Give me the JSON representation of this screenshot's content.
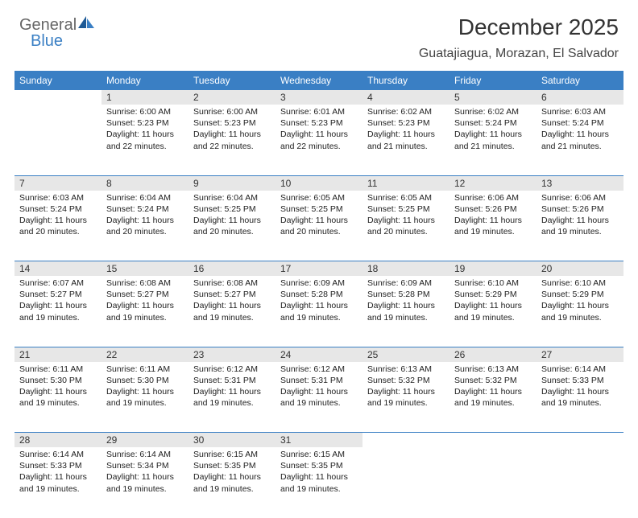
{
  "logo": {
    "part1": "General",
    "part2": "Blue"
  },
  "title": "December 2025",
  "subtitle": "Guatajiagua, Morazan, El Salvador",
  "colors": {
    "header_bg": "#3a7fc4",
    "header_fg": "#ffffff",
    "daynum_bg": "#e7e7e7",
    "daynum_fg": "#333333",
    "body_fg": "#222222",
    "rule": "#3a7fc4",
    "logo_gray": "#666666",
    "logo_blue": "#3a7fc4",
    "background": "#ffffff"
  },
  "typography": {
    "title_pt": 28,
    "subtitle_pt": 16,
    "dayheader_pt": 12,
    "daynum_pt": 12,
    "body_pt": 10.5
  },
  "dayHeaders": [
    "Sunday",
    "Monday",
    "Tuesday",
    "Wednesday",
    "Thursday",
    "Friday",
    "Saturday"
  ],
  "weeks": [
    [
      null,
      {
        "n": "1",
        "sunrise": "Sunrise: 6:00 AM",
        "sunset": "Sunset: 5:23 PM",
        "daylight": "Daylight: 11 hours and 22 minutes."
      },
      {
        "n": "2",
        "sunrise": "Sunrise: 6:00 AM",
        "sunset": "Sunset: 5:23 PM",
        "daylight": "Daylight: 11 hours and 22 minutes."
      },
      {
        "n": "3",
        "sunrise": "Sunrise: 6:01 AM",
        "sunset": "Sunset: 5:23 PM",
        "daylight": "Daylight: 11 hours and 22 minutes."
      },
      {
        "n": "4",
        "sunrise": "Sunrise: 6:02 AM",
        "sunset": "Sunset: 5:23 PM",
        "daylight": "Daylight: 11 hours and 21 minutes."
      },
      {
        "n": "5",
        "sunrise": "Sunrise: 6:02 AM",
        "sunset": "Sunset: 5:24 PM",
        "daylight": "Daylight: 11 hours and 21 minutes."
      },
      {
        "n": "6",
        "sunrise": "Sunrise: 6:03 AM",
        "sunset": "Sunset: 5:24 PM",
        "daylight": "Daylight: 11 hours and 21 minutes."
      }
    ],
    [
      {
        "n": "7",
        "sunrise": "Sunrise: 6:03 AM",
        "sunset": "Sunset: 5:24 PM",
        "daylight": "Daylight: 11 hours and 20 minutes."
      },
      {
        "n": "8",
        "sunrise": "Sunrise: 6:04 AM",
        "sunset": "Sunset: 5:24 PM",
        "daylight": "Daylight: 11 hours and 20 minutes."
      },
      {
        "n": "9",
        "sunrise": "Sunrise: 6:04 AM",
        "sunset": "Sunset: 5:25 PM",
        "daylight": "Daylight: 11 hours and 20 minutes."
      },
      {
        "n": "10",
        "sunrise": "Sunrise: 6:05 AM",
        "sunset": "Sunset: 5:25 PM",
        "daylight": "Daylight: 11 hours and 20 minutes."
      },
      {
        "n": "11",
        "sunrise": "Sunrise: 6:05 AM",
        "sunset": "Sunset: 5:25 PM",
        "daylight": "Daylight: 11 hours and 20 minutes."
      },
      {
        "n": "12",
        "sunrise": "Sunrise: 6:06 AM",
        "sunset": "Sunset: 5:26 PM",
        "daylight": "Daylight: 11 hours and 19 minutes."
      },
      {
        "n": "13",
        "sunrise": "Sunrise: 6:06 AM",
        "sunset": "Sunset: 5:26 PM",
        "daylight": "Daylight: 11 hours and 19 minutes."
      }
    ],
    [
      {
        "n": "14",
        "sunrise": "Sunrise: 6:07 AM",
        "sunset": "Sunset: 5:27 PM",
        "daylight": "Daylight: 11 hours and 19 minutes."
      },
      {
        "n": "15",
        "sunrise": "Sunrise: 6:08 AM",
        "sunset": "Sunset: 5:27 PM",
        "daylight": "Daylight: 11 hours and 19 minutes."
      },
      {
        "n": "16",
        "sunrise": "Sunrise: 6:08 AM",
        "sunset": "Sunset: 5:27 PM",
        "daylight": "Daylight: 11 hours and 19 minutes."
      },
      {
        "n": "17",
        "sunrise": "Sunrise: 6:09 AM",
        "sunset": "Sunset: 5:28 PM",
        "daylight": "Daylight: 11 hours and 19 minutes."
      },
      {
        "n": "18",
        "sunrise": "Sunrise: 6:09 AM",
        "sunset": "Sunset: 5:28 PM",
        "daylight": "Daylight: 11 hours and 19 minutes."
      },
      {
        "n": "19",
        "sunrise": "Sunrise: 6:10 AM",
        "sunset": "Sunset: 5:29 PM",
        "daylight": "Daylight: 11 hours and 19 minutes."
      },
      {
        "n": "20",
        "sunrise": "Sunrise: 6:10 AM",
        "sunset": "Sunset: 5:29 PM",
        "daylight": "Daylight: 11 hours and 19 minutes."
      }
    ],
    [
      {
        "n": "21",
        "sunrise": "Sunrise: 6:11 AM",
        "sunset": "Sunset: 5:30 PM",
        "daylight": "Daylight: 11 hours and 19 minutes."
      },
      {
        "n": "22",
        "sunrise": "Sunrise: 6:11 AM",
        "sunset": "Sunset: 5:30 PM",
        "daylight": "Daylight: 11 hours and 19 minutes."
      },
      {
        "n": "23",
        "sunrise": "Sunrise: 6:12 AM",
        "sunset": "Sunset: 5:31 PM",
        "daylight": "Daylight: 11 hours and 19 minutes."
      },
      {
        "n": "24",
        "sunrise": "Sunrise: 6:12 AM",
        "sunset": "Sunset: 5:31 PM",
        "daylight": "Daylight: 11 hours and 19 minutes."
      },
      {
        "n": "25",
        "sunrise": "Sunrise: 6:13 AM",
        "sunset": "Sunset: 5:32 PM",
        "daylight": "Daylight: 11 hours and 19 minutes."
      },
      {
        "n": "26",
        "sunrise": "Sunrise: 6:13 AM",
        "sunset": "Sunset: 5:32 PM",
        "daylight": "Daylight: 11 hours and 19 minutes."
      },
      {
        "n": "27",
        "sunrise": "Sunrise: 6:14 AM",
        "sunset": "Sunset: 5:33 PM",
        "daylight": "Daylight: 11 hours and 19 minutes."
      }
    ],
    [
      {
        "n": "28",
        "sunrise": "Sunrise: 6:14 AM",
        "sunset": "Sunset: 5:33 PM",
        "daylight": "Daylight: 11 hours and 19 minutes."
      },
      {
        "n": "29",
        "sunrise": "Sunrise: 6:14 AM",
        "sunset": "Sunset: 5:34 PM",
        "daylight": "Daylight: 11 hours and 19 minutes."
      },
      {
        "n": "30",
        "sunrise": "Sunrise: 6:15 AM",
        "sunset": "Sunset: 5:35 PM",
        "daylight": "Daylight: 11 hours and 19 minutes."
      },
      {
        "n": "31",
        "sunrise": "Sunrise: 6:15 AM",
        "sunset": "Sunset: 5:35 PM",
        "daylight": "Daylight: 11 hours and 19 minutes."
      },
      null,
      null,
      null
    ]
  ]
}
